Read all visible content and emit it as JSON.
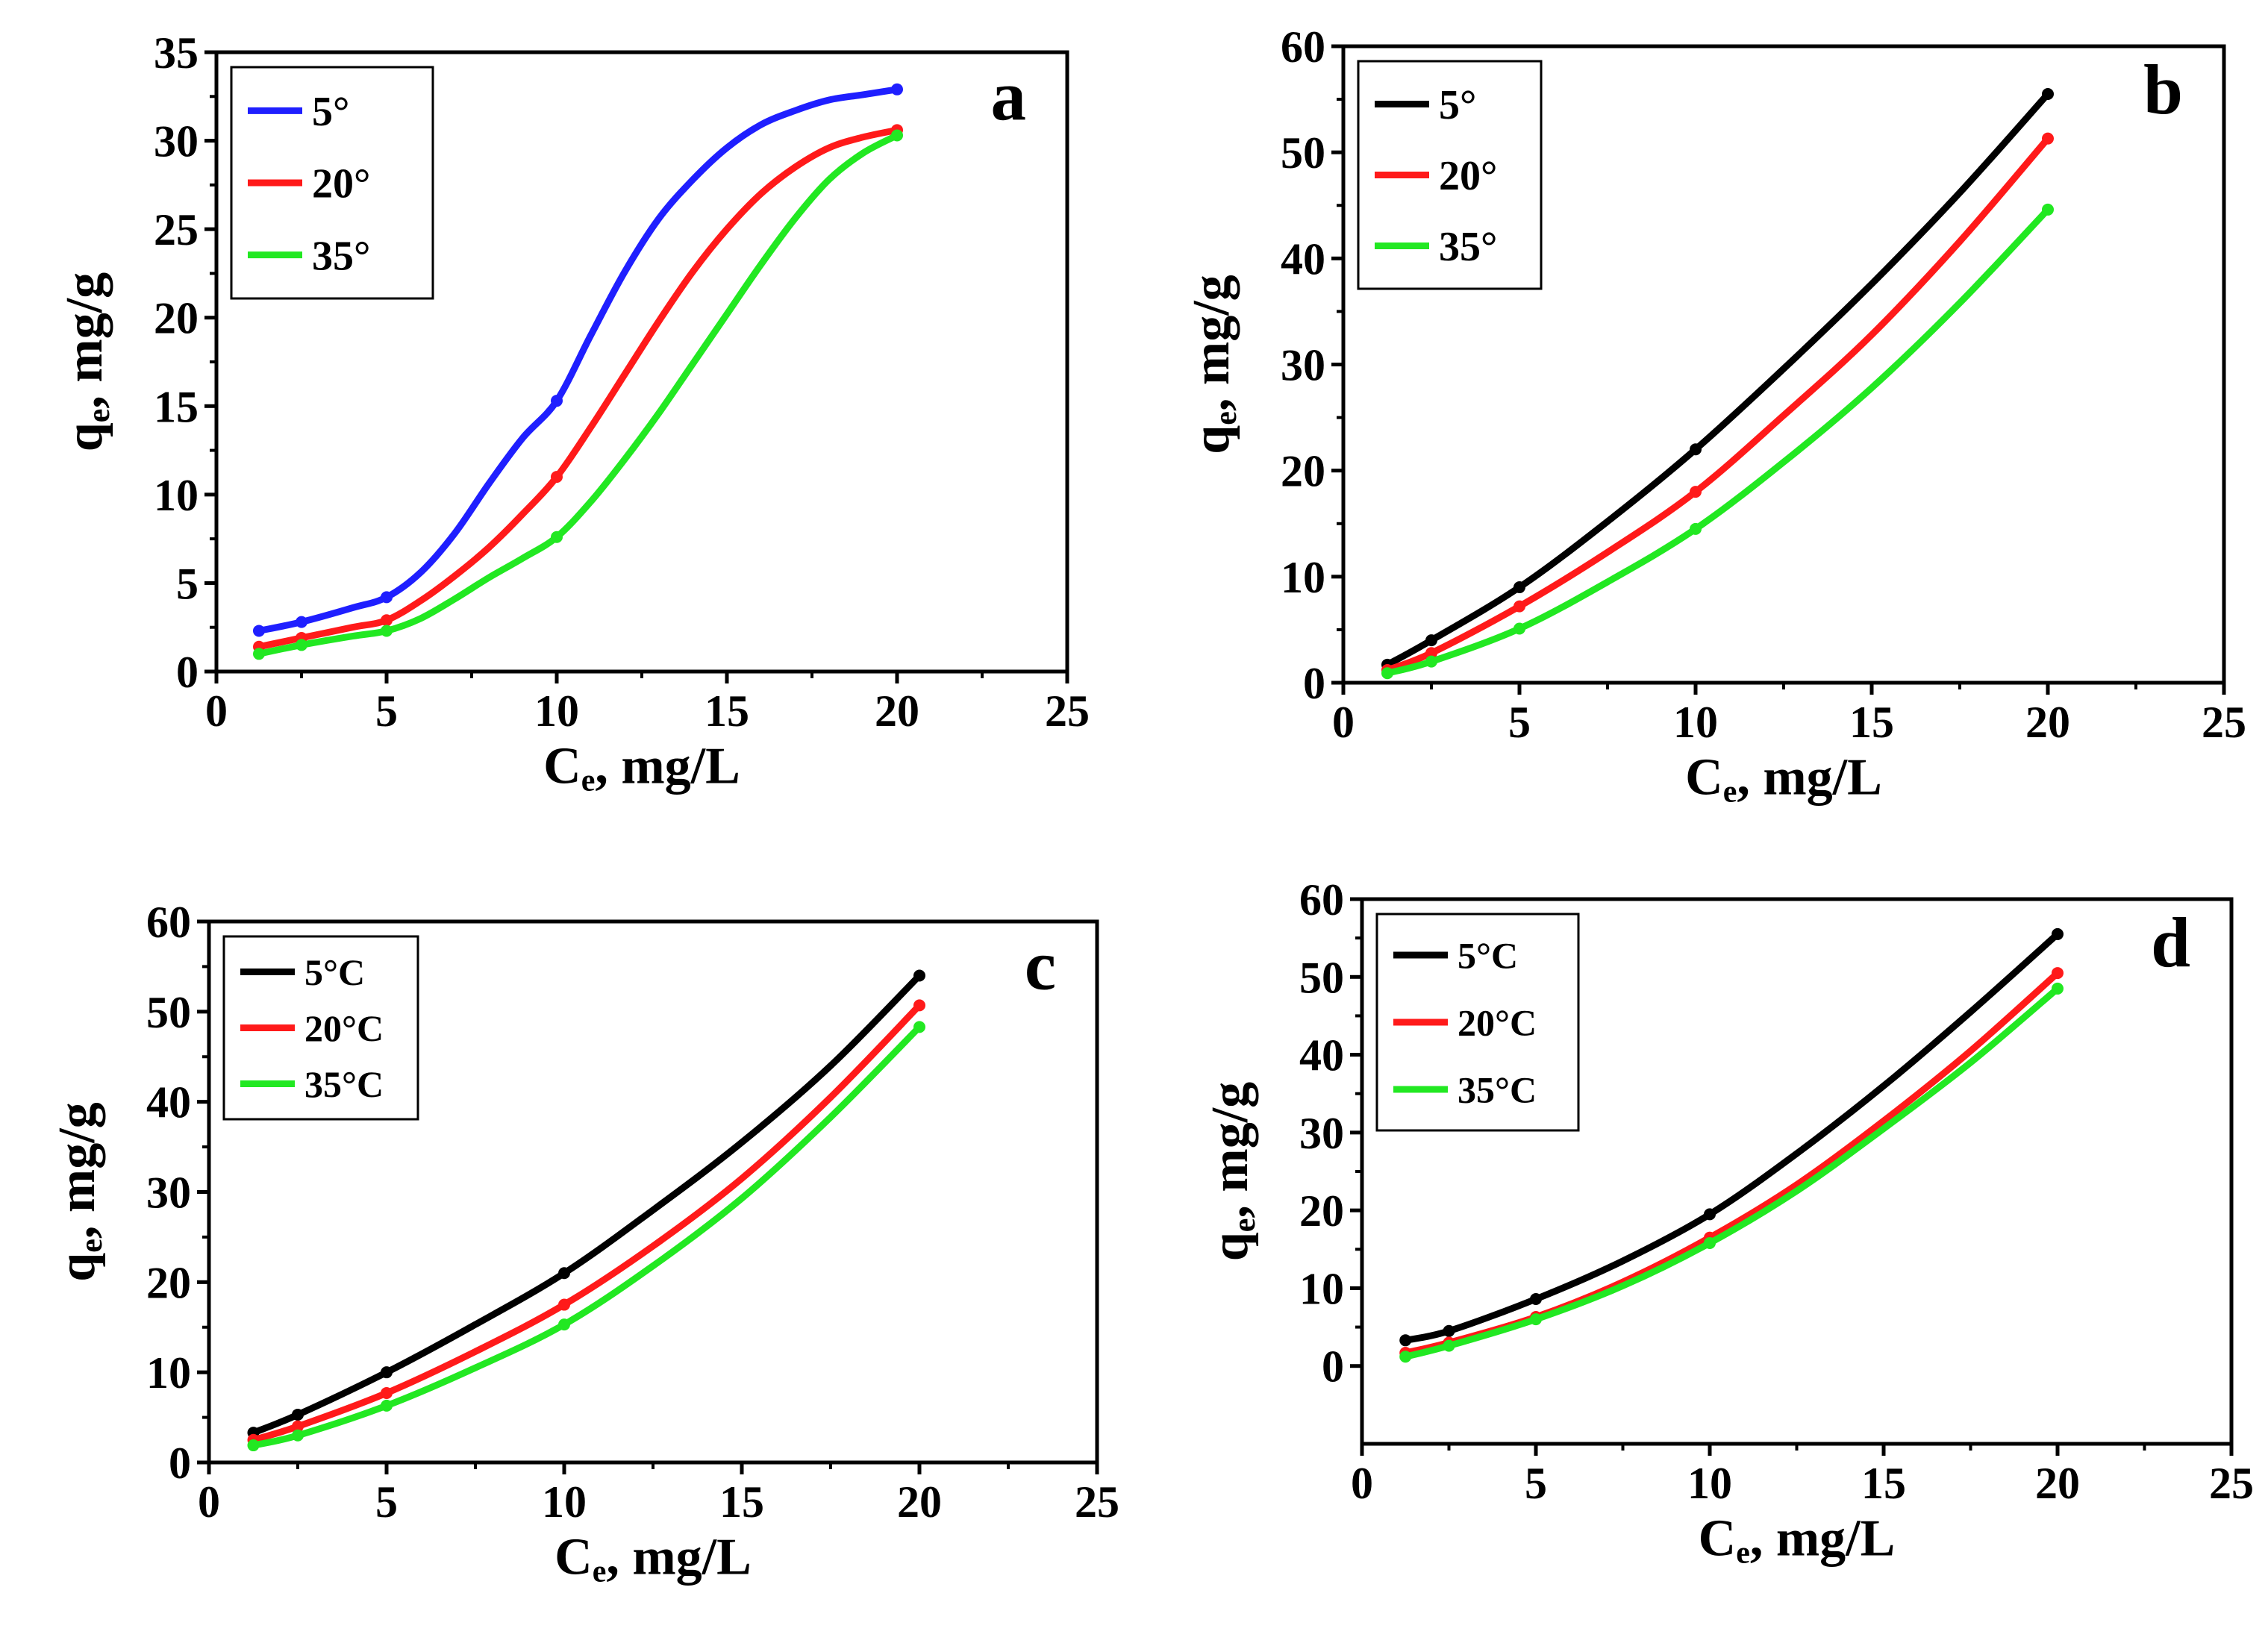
{
  "colors": {
    "axis": "#000000",
    "blue": "#1f1fff",
    "red": "#ff1a1a",
    "green": "#22e822",
    "black": "#000000"
  },
  "chart_data": [
    {
      "id": "a",
      "type": "line",
      "letter": "a",
      "xlabel_main": "C",
      "xlabel_sub": "e",
      "xlabel_rest": ", mg/L",
      "ylabel_main": "q",
      "ylabel_sub": "e",
      "ylabel_rest": ", mg/g",
      "xlim": [
        0,
        25
      ],
      "ylim": [
        0,
        35
      ],
      "xticks": [
        "0",
        "5",
        "10",
        "15",
        "20",
        "25"
      ],
      "yticks": [
        "0",
        "5",
        "10",
        "15",
        "20",
        "25",
        "30",
        "35"
      ],
      "legend": "top-left",
      "grid": false,
      "series": [
        {
          "name": "5°",
          "color": "blue",
          "x": [
            1.25,
            2.5,
            5,
            10,
            20
          ],
          "y": [
            2.3,
            2.8,
            4.2,
            15.3,
            32.9
          ],
          "curve_x": [
            1.25,
            2.5,
            4,
            5,
            6,
            7,
            8,
            9,
            10,
            11,
            12,
            13,
            14,
            15,
            16,
            17,
            18,
            19,
            20
          ],
          "curve_y": [
            2.3,
            2.8,
            3.6,
            4.2,
            5.6,
            7.8,
            10.6,
            13.2,
            15.3,
            19.0,
            22.6,
            25.6,
            27.8,
            29.6,
            30.9,
            31.7,
            32.3,
            32.6,
            32.9
          ]
        },
        {
          "name": "20°",
          "color": "red",
          "x": [
            1.25,
            2.5,
            5,
            10,
            20
          ],
          "y": [
            1.4,
            1.9,
            2.9,
            11.0,
            30.6
          ],
          "curve_x": [
            1.25,
            2.5,
            4,
            5,
            6,
            7,
            8,
            9,
            10,
            11,
            12,
            13,
            14,
            15,
            16,
            17,
            18,
            19,
            20
          ],
          "curve_y": [
            1.4,
            1.9,
            2.5,
            2.9,
            4.0,
            5.4,
            7.0,
            8.9,
            11.0,
            13.8,
            16.8,
            19.8,
            22.6,
            25.0,
            27.0,
            28.5,
            29.6,
            30.2,
            30.6
          ]
        },
        {
          "name": "35°",
          "color": "green",
          "x": [
            1.25,
            2.5,
            5,
            10,
            20
          ],
          "y": [
            1.0,
            1.5,
            2.3,
            7.6,
            30.3
          ],
          "curve_x": [
            1.25,
            2.5,
            4,
            5,
            6,
            7,
            8,
            9,
            10,
            11,
            12,
            13,
            14,
            15,
            16,
            17,
            18,
            19,
            20
          ],
          "curve_y": [
            1.0,
            1.5,
            2.0,
            2.3,
            3.0,
            4.1,
            5.3,
            6.4,
            7.6,
            9.6,
            12.0,
            14.6,
            17.4,
            20.2,
            23.0,
            25.6,
            27.8,
            29.3,
            30.3
          ]
        }
      ]
    },
    {
      "id": "b",
      "type": "line",
      "letter": "b",
      "xlabel_main": "C",
      "xlabel_sub": "e",
      "xlabel_rest": ", mg/L",
      "ylabel_main": "q",
      "ylabel_sub": "e",
      "ylabel_rest": ", mg/g",
      "xlim": [
        0,
        25
      ],
      "ylim": [
        0,
        60
      ],
      "xticks": [
        "0",
        "5",
        "10",
        "15",
        "20",
        "25"
      ],
      "yticks": [
        "0",
        "10",
        "20",
        "30",
        "40",
        "50",
        "60"
      ],
      "legend": "top-left",
      "grid": false,
      "series": [
        {
          "name": "5°",
          "color": "black",
          "x": [
            1.25,
            2.5,
            5,
            10,
            20
          ],
          "y": [
            1.7,
            4.0,
            9.0,
            22.0,
            55.5
          ],
          "curve_x": [
            1.25,
            2.5,
            5,
            7.5,
            10,
            12.5,
            15,
            17.5,
            20
          ],
          "curve_y": [
            1.7,
            4.0,
            9.0,
            15.2,
            22.0,
            29.6,
            37.6,
            46.2,
            55.5
          ]
        },
        {
          "name": "20°",
          "color": "red",
          "x": [
            1.25,
            2.5,
            5,
            10,
            20
          ],
          "y": [
            1.2,
            2.8,
            7.2,
            18.0,
            51.3
          ],
          "curve_x": [
            1.25,
            2.5,
            5,
            7.5,
            10,
            12.5,
            15,
            17.5,
            20
          ],
          "curve_y": [
            1.2,
            2.8,
            7.2,
            12.3,
            18.0,
            25.2,
            32.8,
            41.6,
            51.3
          ]
        },
        {
          "name": "35°",
          "color": "green",
          "x": [
            1.25,
            2.5,
            5,
            10,
            20
          ],
          "y": [
            0.9,
            2.0,
            5.1,
            14.5,
            44.6
          ],
          "curve_x": [
            1.25,
            2.5,
            5,
            7.5,
            10,
            12.5,
            15,
            17.5,
            20
          ],
          "curve_y": [
            0.9,
            2.0,
            5.1,
            9.5,
            14.5,
            20.8,
            27.8,
            35.8,
            44.6
          ]
        }
      ]
    },
    {
      "id": "c",
      "type": "line",
      "letter": "c",
      "xlabel_main": "C",
      "xlabel_sub": "e",
      "xlabel_rest": ", mg/L",
      "ylabel_main": "q",
      "ylabel_sub": "e",
      "ylabel_rest": ", mg/g",
      "xlim": [
        0,
        25
      ],
      "ylim": [
        0,
        60
      ],
      "xticks": [
        "0",
        "5",
        "10",
        "15",
        "20",
        "25"
      ],
      "yticks": [
        "0",
        "10",
        "20",
        "30",
        "40",
        "50",
        "60"
      ],
      "legend": "top-left",
      "grid": false,
      "series": [
        {
          "name": "5°C",
          "color": "black",
          "x": [
            1.25,
            2.5,
            5,
            10,
            20
          ],
          "y": [
            3.3,
            5.3,
            10.0,
            21.0,
            54.0
          ],
          "curve_x": [
            1.25,
            2.5,
            5,
            7.5,
            10,
            12.5,
            15,
            17.5,
            20
          ],
          "curve_y": [
            3.3,
            5.3,
            10.0,
            15.3,
            21.0,
            28.0,
            35.5,
            44.0,
            54.0
          ]
        },
        {
          "name": "20°C",
          "color": "red",
          "x": [
            1.25,
            2.5,
            5,
            10,
            20
          ],
          "y": [
            2.5,
            4.0,
            7.7,
            17.5,
            50.7
          ],
          "curve_x": [
            1.25,
            2.5,
            5,
            7.5,
            10,
            12.5,
            15,
            17.5,
            20
          ],
          "curve_y": [
            2.5,
            4.0,
            7.7,
            12.3,
            17.5,
            24.0,
            31.5,
            40.5,
            50.7
          ]
        },
        {
          "name": "35°C",
          "color": "green",
          "x": [
            1.25,
            2.5,
            5,
            10,
            20
          ],
          "y": [
            1.9,
            3.0,
            6.3,
            15.3,
            48.3
          ],
          "curve_x": [
            1.25,
            2.5,
            5,
            7.5,
            10,
            12.5,
            15,
            17.5,
            20
          ],
          "curve_y": [
            1.9,
            3.0,
            6.3,
            10.5,
            15.3,
            21.8,
            29.3,
            38.3,
            48.3
          ]
        }
      ]
    },
    {
      "id": "d",
      "type": "line",
      "letter": "d",
      "xlabel_main": "C",
      "xlabel_sub": "e",
      "xlabel_rest": ", mg/L",
      "ylabel_main": "q",
      "ylabel_sub": "e",
      "ylabel_rest": ", mg/g",
      "xlim": [
        0,
        25
      ],
      "ylim": [
        -10,
        60
      ],
      "xticks": [
        "0",
        "5",
        "10",
        "15",
        "20",
        "25"
      ],
      "yticks": [
        "0",
        "10",
        "20",
        "30",
        "40",
        "50",
        "60"
      ],
      "legend": "top-left",
      "grid": false,
      "series": [
        {
          "name": "5°C",
          "color": "black",
          "x": [
            1.25,
            2.5,
            5,
            10,
            20
          ],
          "y": [
            3.3,
            4.5,
            8.6,
            19.5,
            55.5
          ],
          "curve_x": [
            1.25,
            2.5,
            5,
            7.5,
            10,
            12.5,
            15,
            17.5,
            20
          ],
          "curve_y": [
            3.3,
            4.5,
            8.6,
            13.5,
            19.5,
            27.3,
            36.0,
            45.5,
            55.5
          ]
        },
        {
          "name": "20°C",
          "color": "red",
          "x": [
            1.25,
            2.5,
            5,
            10,
            20
          ],
          "y": [
            1.7,
            3.0,
            6.3,
            16.5,
            50.5
          ],
          "curve_x": [
            1.25,
            2.5,
            5,
            7.5,
            10,
            12.5,
            15,
            17.5,
            20
          ],
          "curve_y": [
            1.7,
            3.0,
            6.3,
            10.8,
            16.5,
            23.3,
            31.5,
            40.5,
            50.5
          ]
        },
        {
          "name": "35°C",
          "color": "green",
          "x": [
            1.25,
            2.5,
            5,
            10,
            20
          ],
          "y": [
            1.2,
            2.6,
            6.0,
            15.8,
            48.5
          ],
          "curve_x": [
            1.25,
            2.5,
            5,
            7.5,
            10,
            12.5,
            15,
            17.5,
            20
          ],
          "curve_y": [
            1.2,
            2.6,
            6.0,
            10.3,
            15.8,
            22.5,
            30.5,
            39.0,
            48.5
          ]
        }
      ]
    }
  ]
}
